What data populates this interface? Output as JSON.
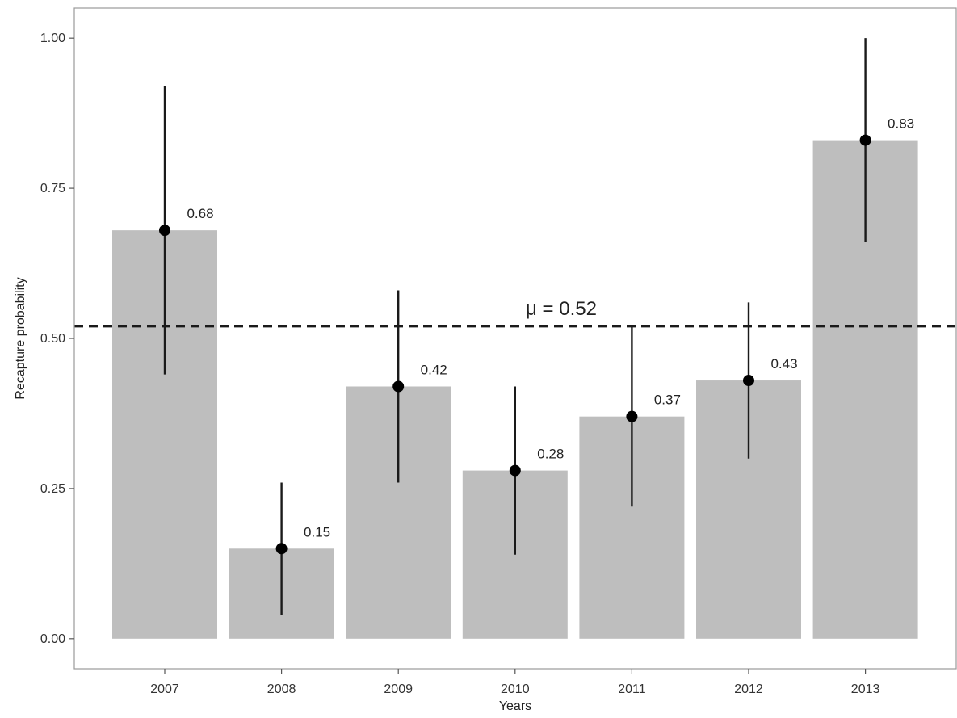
{
  "chart_data": {
    "type": "bar",
    "title": "",
    "xlabel": "Years",
    "ylabel": "Recapture probability",
    "categories": [
      "2007",
      "2008",
      "2009",
      "2010",
      "2011",
      "2012",
      "2013"
    ],
    "values": [
      0.68,
      0.15,
      0.42,
      0.28,
      0.37,
      0.43,
      0.83
    ],
    "value_labels": [
      "0.68",
      "0.15",
      "0.42",
      "0.28",
      "0.37",
      "0.43",
      "0.83"
    ],
    "error_low": [
      0.44,
      0.04,
      0.26,
      0.14,
      0.22,
      0.3,
      0.66
    ],
    "error_high": [
      0.92,
      0.26,
      0.58,
      0.42,
      0.52,
      0.56,
      1.0
    ],
    "mean_line": {
      "value": 0.52,
      "label": "μ = 0.52"
    },
    "yticks": [
      0.0,
      0.25,
      0.5,
      0.75,
      1.0
    ],
    "ytick_labels": [
      "0.00",
      "0.25",
      "0.50",
      "0.75",
      "1.00"
    ],
    "ylim": [
      -0.05,
      1.05
    ],
    "grid": false,
    "legend": "none",
    "colors": {
      "bar": "#bebebe",
      "point": "#000000",
      "errorbar": "#1a1a1a",
      "mean_line": "#1a1a1a",
      "panel_border": "#9a9a9a"
    }
  }
}
